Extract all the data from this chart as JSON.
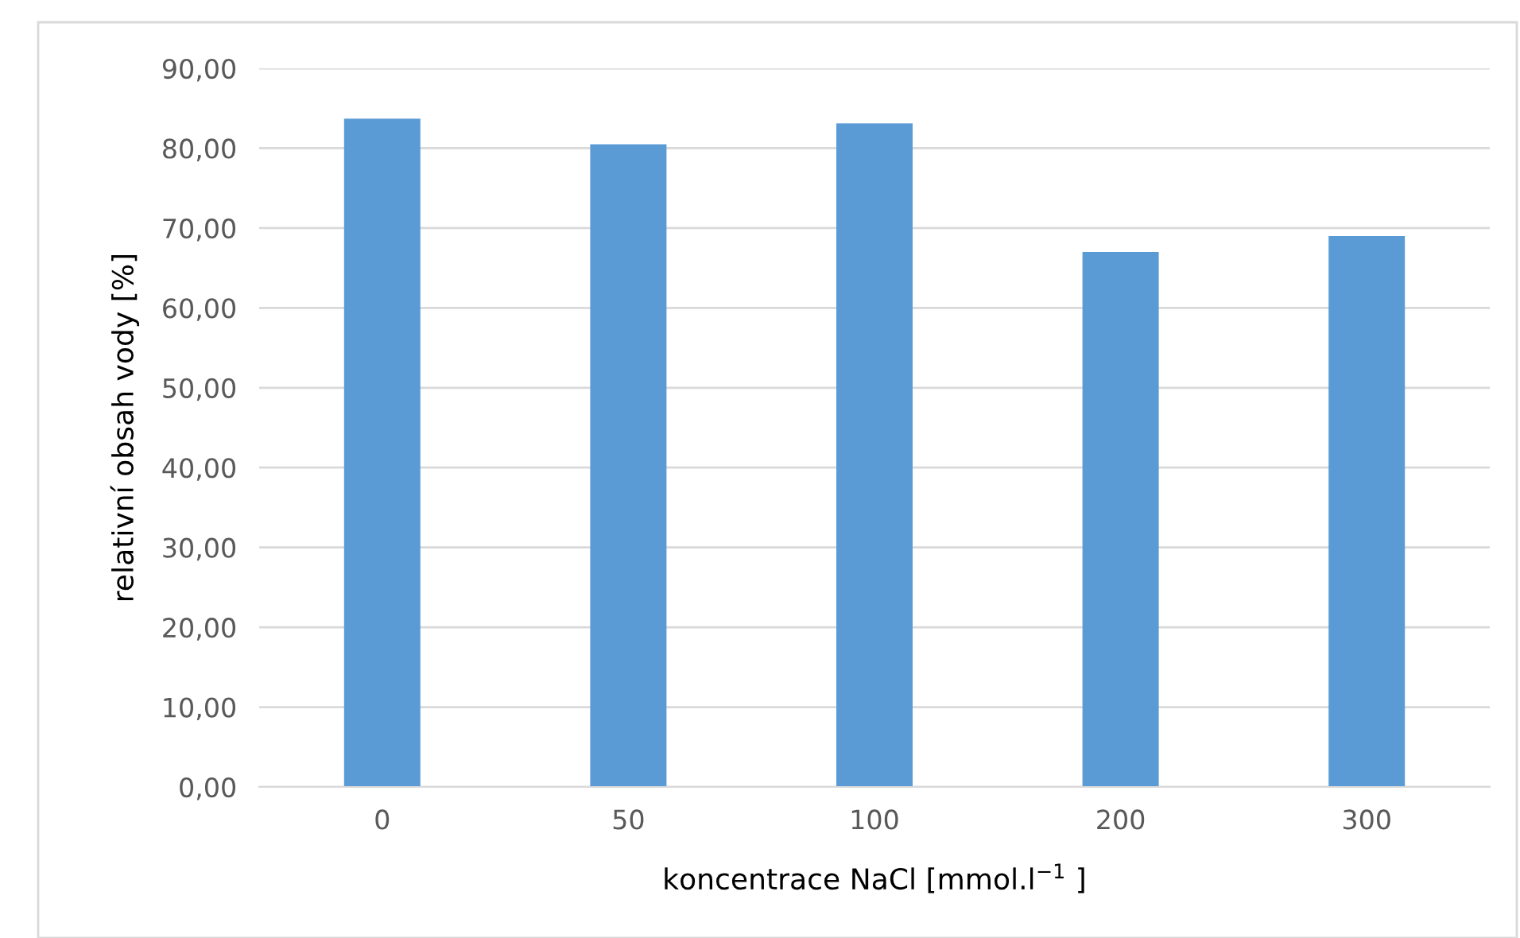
{
  "chart_data": {
    "type": "bar",
    "xlabel": "koncentrace NaCl [mmol.l$^{−1}$ ]",
    "ylabel": "relativní obsah vody [%]",
    "categories": [
      "0",
      "50",
      "100",
      "200",
      "300"
    ],
    "values": [
      83.7,
      80.5,
      83.1,
      67.0,
      69.0
    ],
    "color": "#5b9bd5",
    "ylim": [
      0,
      90
    ],
    "yticks": [
      {
        "value": 0,
        "label": "0,00"
      },
      {
        "value": 10,
        "label": "10,00"
      },
      {
        "value": 20,
        "label": "20,00"
      },
      {
        "value": 30,
        "label": "30,00"
      },
      {
        "value": 40,
        "label": "40,00"
      },
      {
        "value": 50,
        "label": "50,00"
      },
      {
        "value": 60,
        "label": "60,00"
      },
      {
        "value": 70,
        "label": "70,00"
      },
      {
        "value": 80,
        "label": "80,00"
      },
      {
        "value": 90,
        "label": "90,00"
      }
    ],
    "grid": "y",
    "legend": false
  }
}
